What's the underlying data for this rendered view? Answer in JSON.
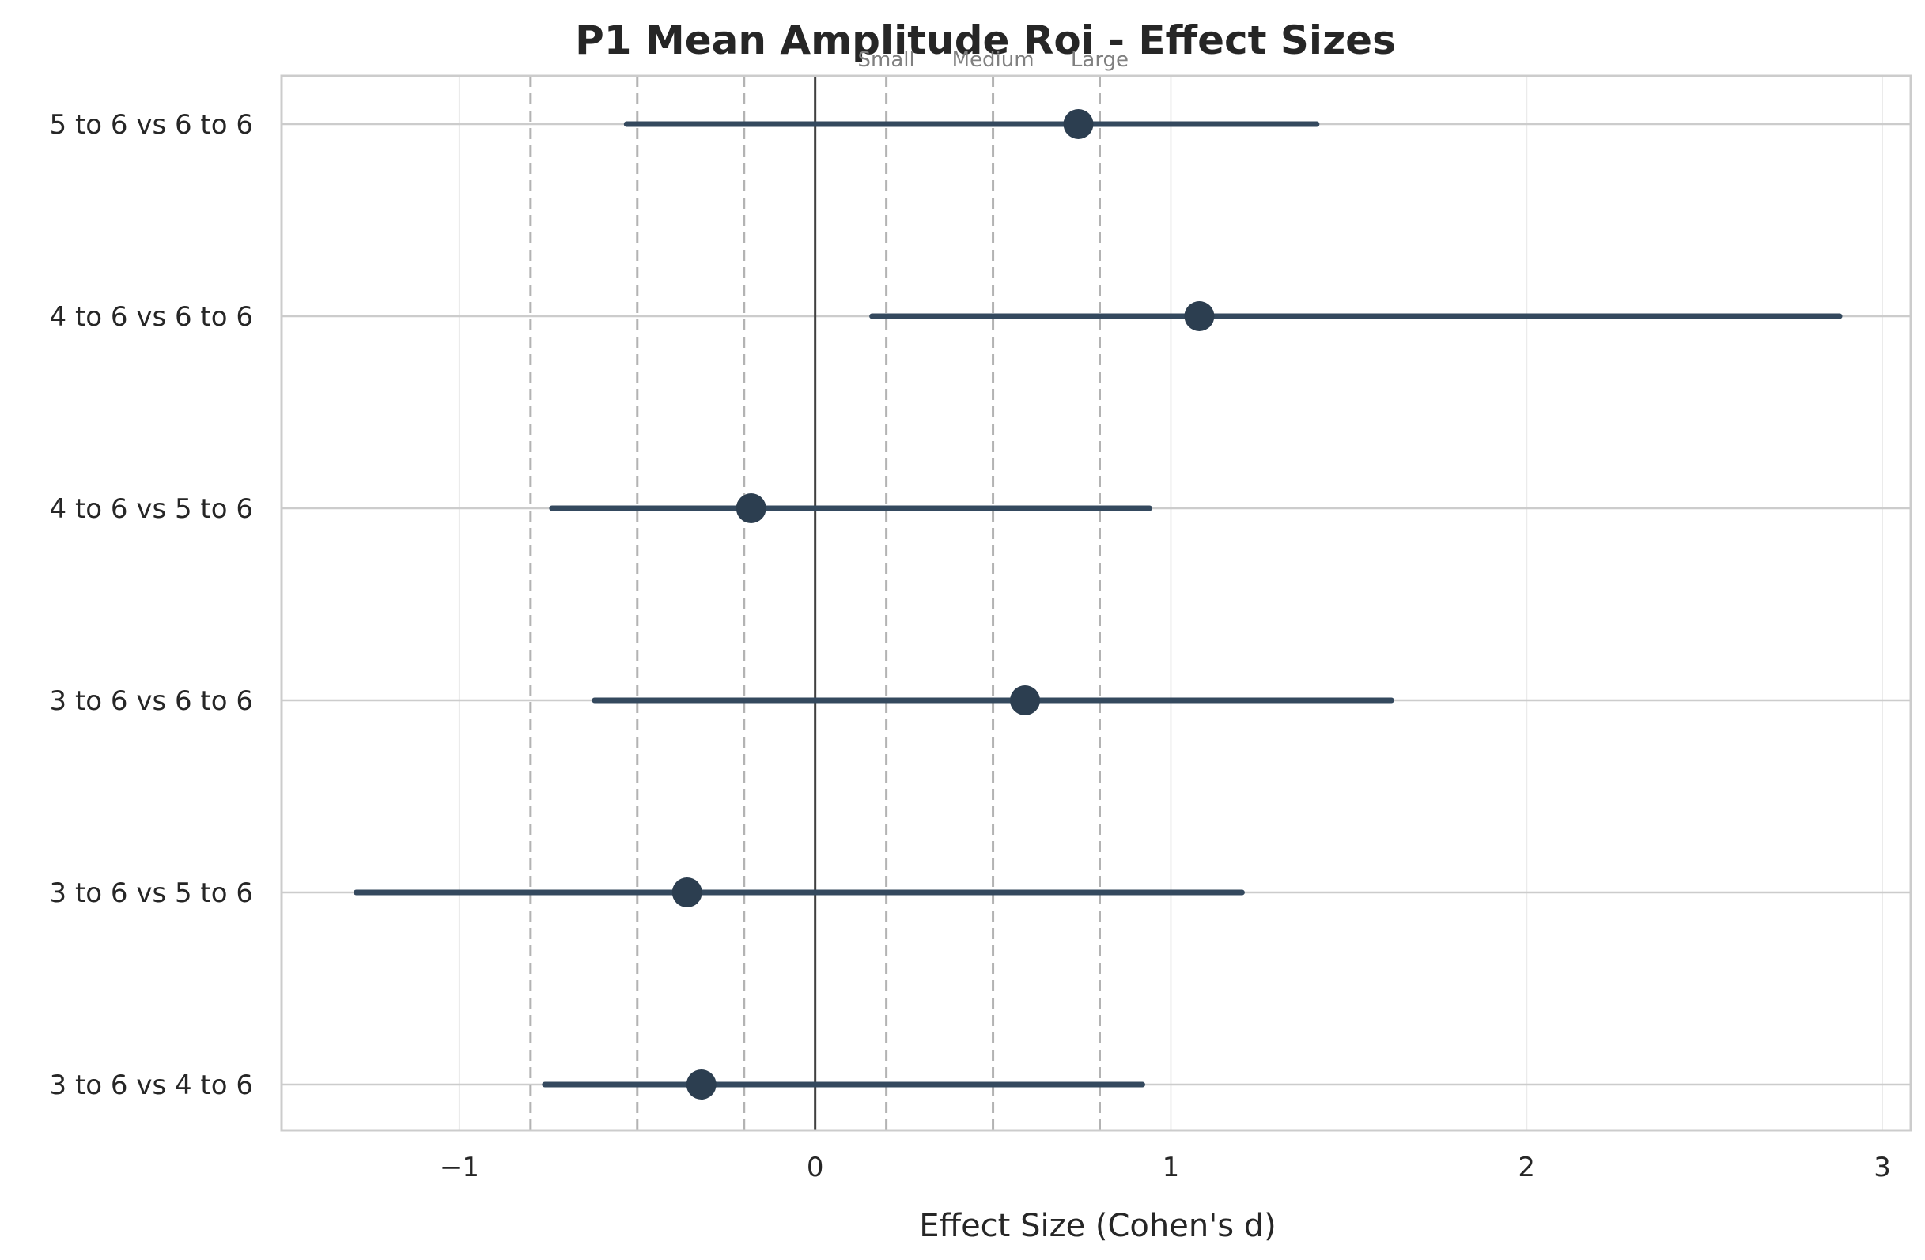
{
  "chart_data": {
    "type": "forest",
    "title": "P1 Mean Amplitude Roi - Effect Sizes",
    "xlabel": "Effect Size (Cohen's d)",
    "ylabel": "",
    "xlim": [
      -1.5,
      3.08
    ],
    "xticks": [
      -1,
      0,
      1,
      2,
      3
    ],
    "xtick_labels": [
      "−1",
      "0",
      "1",
      "2",
      "3"
    ],
    "grid": true,
    "comparisons": [
      {
        "label": "5 to 6 vs 6 to 6",
        "d": 0.74,
        "ci_low": -0.53,
        "ci_high": 1.41
      },
      {
        "label": "4 to 6 vs 6 to 6",
        "d": 1.08,
        "ci_low": 0.16,
        "ci_high": 2.88
      },
      {
        "label": "4 to 6 vs 5 to 6",
        "d": -0.18,
        "ci_low": -0.74,
        "ci_high": 0.94
      },
      {
        "label": "3 to 6 vs 6 to 6",
        "d": 0.59,
        "ci_low": -0.62,
        "ci_high": 1.62
      },
      {
        "label": "3 to 6 vs 5 to 6",
        "d": -0.36,
        "ci_low": -1.29,
        "ci_high": 1.2
      },
      {
        "label": "3 to 6 vs 4 to 6",
        "d": -0.32,
        "ci_low": -0.76,
        "ci_high": 0.92
      }
    ],
    "reference_lines": [
      {
        "value": 0.2,
        "label": "Small"
      },
      {
        "value": 0.5,
        "label": "Medium"
      },
      {
        "value": 0.8,
        "label": "Large"
      },
      {
        "value": -0.2,
        "label": ""
      },
      {
        "value": -0.5,
        "label": ""
      },
      {
        "value": -0.8,
        "label": ""
      }
    ],
    "zero_line": 0,
    "colors": {
      "point": "#2c3e50",
      "ci": "#34495e",
      "reference": "#b3b3b3",
      "zero": "#404040",
      "grid": "#ebebeb",
      "hgrid": "#cccccc",
      "frame": "#cccccc"
    }
  }
}
